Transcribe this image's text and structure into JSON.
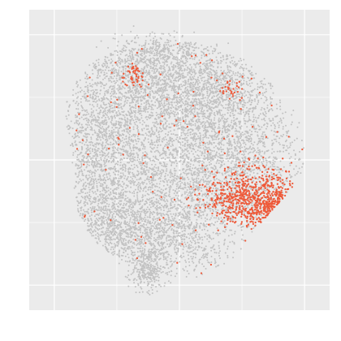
{
  "colors": {
    "panel_background": "#ebebeb",
    "grid_line": "#ffffff",
    "background_points": "#c2c2c2",
    "highlight_points": "#ee5a3a"
  },
  "chart_data": {
    "type": "scatter",
    "title": "",
    "xlabel": "",
    "ylabel": "",
    "xlim": [
      -0.1,
      1.1
    ],
    "ylim": [
      -0.1,
      1.1
    ],
    "x_ticks": [],
    "y_ticks": [],
    "grid": true,
    "legend": "none",
    "series": [
      {
        "role": "background",
        "color": "#c2c2c2",
        "approx_point_count": 9000,
        "clusters": [
          {
            "cx": 0.5,
            "cy": 0.52,
            "sx": 0.24,
            "sy": 0.22,
            "n": 3600
          },
          {
            "cx": 0.34,
            "cy": 0.82,
            "sx": 0.13,
            "sy": 0.08,
            "n": 900
          },
          {
            "cx": 0.62,
            "cy": 0.8,
            "sx": 0.12,
            "sy": 0.08,
            "n": 800
          },
          {
            "cx": 0.18,
            "cy": 0.55,
            "sx": 0.08,
            "sy": 0.14,
            "n": 800
          },
          {
            "cx": 0.22,
            "cy": 0.25,
            "sx": 0.1,
            "sy": 0.08,
            "n": 700
          },
          {
            "cx": 0.45,
            "cy": 0.2,
            "sx": 0.12,
            "sy": 0.08,
            "n": 700
          },
          {
            "cx": 0.72,
            "cy": 0.55,
            "sx": 0.12,
            "sy": 0.12,
            "n": 700
          },
          {
            "cx": 0.37,
            "cy": 0.06,
            "sx": 0.035,
            "sy": 0.04,
            "n": 300
          },
          {
            "cx": 0.41,
            "cy": 0.94,
            "sx": 0.09,
            "sy": 0.03,
            "n": 300
          }
        ]
      },
      {
        "role": "highlight",
        "color": "#ee5a3a",
        "approx_point_count": 1350,
        "clusters": [
          {
            "cx": 0.94,
            "cy": 0.27,
            "sx": 0.03,
            "sy": 0.028,
            "n": 450
          },
          {
            "cx": 0.84,
            "cy": 0.34,
            "sx": 0.07,
            "sy": 0.06,
            "n": 500
          },
          {
            "cx": 0.7,
            "cy": 0.35,
            "sx": 0.06,
            "sy": 0.045,
            "n": 220
          },
          {
            "cx": 0.32,
            "cy": 0.83,
            "sx": 0.025,
            "sy": 0.025,
            "n": 50
          },
          {
            "cx": 0.7,
            "cy": 0.78,
            "sx": 0.03,
            "sy": 0.03,
            "n": 30
          }
        ],
        "scattered": 110
      }
    ]
  }
}
